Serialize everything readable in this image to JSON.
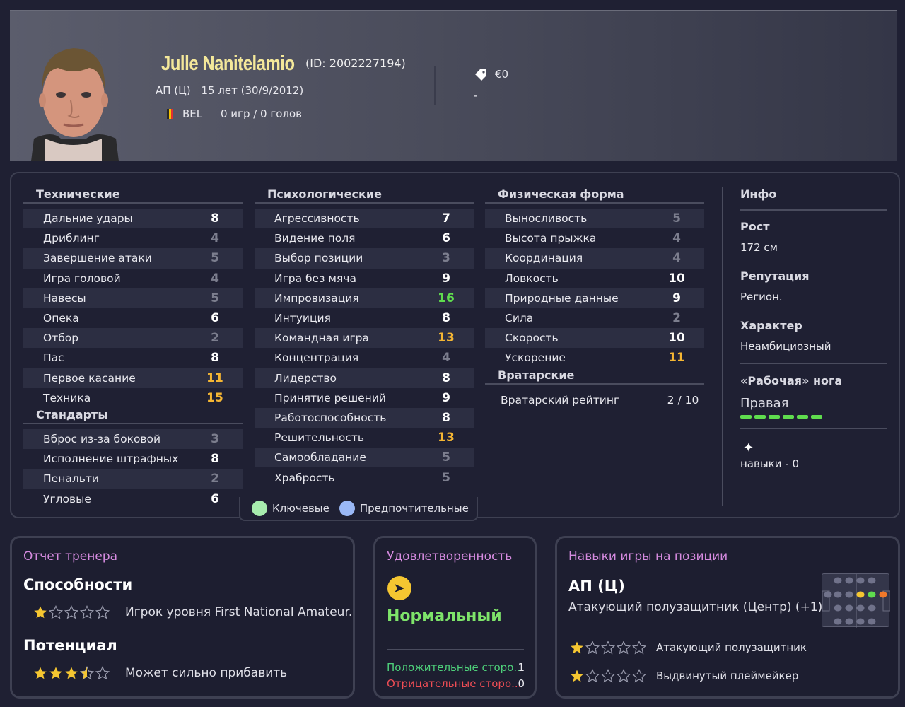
{
  "header": {
    "name": "Julle Nanitelamio",
    "id_text": "(ID: 2002227194)",
    "position": "АП (Ц)",
    "age": "15 лет (30/9/2012)",
    "nation": "BEL",
    "games": "0 игр / 0 голов",
    "value": "€0",
    "value_dash": "-"
  },
  "technical": {
    "title": "Технические",
    "rows": [
      {
        "name": "Дальние удары",
        "value": "8",
        "tier": "mid"
      },
      {
        "name": "Дриблинг",
        "value": "4",
        "tier": "low"
      },
      {
        "name": "Завершение атаки",
        "value": "5",
        "tier": "low"
      },
      {
        "name": "Игра головой",
        "value": "4",
        "tier": "low"
      },
      {
        "name": "Навесы",
        "value": "5",
        "tier": "low"
      },
      {
        "name": "Опека",
        "value": "6",
        "tier": "mid"
      },
      {
        "name": "Отбор",
        "value": "2",
        "tier": "low"
      },
      {
        "name": "Пас",
        "value": "8",
        "tier": "mid"
      },
      {
        "name": "Первое касание",
        "value": "11",
        "tier": "good"
      },
      {
        "name": "Техника",
        "value": "15",
        "tier": "good"
      }
    ]
  },
  "setpieces": {
    "title": "Стандарты",
    "rows": [
      {
        "name": "Вброс из-за боковой",
        "value": "3",
        "tier": "low"
      },
      {
        "name": "Исполнение штрафных",
        "value": "8",
        "tier": "mid"
      },
      {
        "name": "Пенальти",
        "value": "2",
        "tier": "low"
      },
      {
        "name": "Угловые",
        "value": "6",
        "tier": "mid"
      }
    ]
  },
  "mental": {
    "title": "Психологические",
    "rows": [
      {
        "name": "Агрессивность",
        "value": "7",
        "tier": "mid"
      },
      {
        "name": "Видение поля",
        "value": "6",
        "tier": "mid"
      },
      {
        "name": "Выбор позиции",
        "value": "3",
        "tier": "low"
      },
      {
        "name": "Игра без мяча",
        "value": "9",
        "tier": "mid"
      },
      {
        "name": "Импровизация",
        "value": "16",
        "tier": "great"
      },
      {
        "name": "Интуиция",
        "value": "8",
        "tier": "mid"
      },
      {
        "name": "Командная игра",
        "value": "13",
        "tier": "good"
      },
      {
        "name": "Концентрация",
        "value": "4",
        "tier": "low"
      },
      {
        "name": "Лидерство",
        "value": "8",
        "tier": "mid"
      },
      {
        "name": "Принятие решений",
        "value": "9",
        "tier": "mid"
      },
      {
        "name": "Работоспособность",
        "value": "8",
        "tier": "mid"
      },
      {
        "name": "Решительность",
        "value": "13",
        "tier": "good"
      },
      {
        "name": "Самообладание",
        "value": "5",
        "tier": "low"
      },
      {
        "name": "Храбрость",
        "value": "5",
        "tier": "low"
      }
    ]
  },
  "physical": {
    "title": "Физическая форма",
    "rows": [
      {
        "name": "Выносливость",
        "value": "5",
        "tier": "low"
      },
      {
        "name": "Высота прыжка",
        "value": "4",
        "tier": "low"
      },
      {
        "name": "Координация",
        "value": "4",
        "tier": "low"
      },
      {
        "name": "Ловкость",
        "value": "10",
        "tier": "mid"
      },
      {
        "name": "Природные данные",
        "value": "9",
        "tier": "mid"
      },
      {
        "name": "Сила",
        "value": "2",
        "tier": "low"
      },
      {
        "name": "Скорость",
        "value": "10",
        "tier": "mid"
      },
      {
        "name": "Ускорение",
        "value": "11",
        "tier": "good"
      }
    ]
  },
  "goalkeeping": {
    "title": "Вратарские",
    "label": "Вратарский рейтинг",
    "value": "2 / 10"
  },
  "legend": {
    "key": "Ключевые",
    "preferred": "Предпочтительные"
  },
  "info": {
    "title": "Инфо",
    "height_label": "Рост",
    "height_value": "172 см",
    "reputation_label": "Репутация",
    "reputation_value": "Регион.",
    "character_label": "Характер",
    "character_value": "Неамбициозный",
    "foot_label": "«Рабочая» нога",
    "foot_value": "Правая",
    "skills": "навыки - 0"
  },
  "coach_report": {
    "title": "Отчет тренера",
    "ability_label": "Способности",
    "ability_stars": 1,
    "ability_text_prefix": "Игрок уровня ",
    "ability_link": "First National Amateur",
    "ability_text_suffix": ".",
    "potential_label": "Потенциал",
    "potential_stars": 3.5,
    "potential_text": "Может сильно прибавить"
  },
  "satisfaction": {
    "title": "Удовлетворенность",
    "status": "Нормальный",
    "positive_label": "Положительные сторо...",
    "positive_count": "1",
    "negative_label": "Отрицательные сторо...",
    "negative_count": "0"
  },
  "position_skills": {
    "title": "Навыки игры на позиции",
    "position_code": "АП (Ц)",
    "position_full": "Атакующий полузащитник (Центр) (+1)",
    "roles": [
      {
        "name": "Атакующий полузащитник",
        "stars": 1
      },
      {
        "name": "Выдвинутый плеймейкер",
        "stars": 1
      }
    ]
  },
  "colors": {
    "name": "#f4e89a",
    "accent_title": "#d68be0",
    "great": "#5fdc4e",
    "good": "#f5b633",
    "low": "#7c7e8e"
  }
}
